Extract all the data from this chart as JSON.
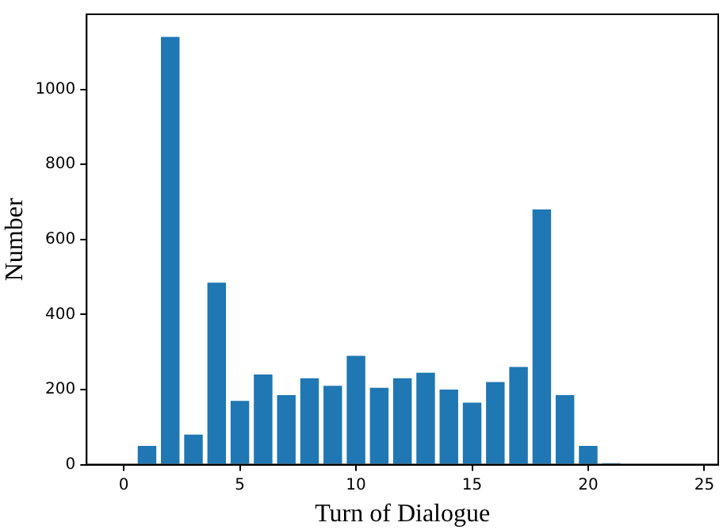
{
  "chart_data": {
    "type": "bar",
    "xlabel": "Turn of Dialogue",
    "ylabel": "Number",
    "x": [
      1,
      2,
      3,
      4,
      5,
      6,
      7,
      8,
      9,
      10,
      11,
      12,
      13,
      14,
      15,
      16,
      17,
      18,
      19,
      20,
      21
    ],
    "values": [
      50,
      1140,
      80,
      485,
      170,
      240,
      185,
      230,
      210,
      290,
      205,
      230,
      245,
      200,
      165,
      220,
      260,
      680,
      185,
      50,
      4
    ],
    "color": "#1f77b4",
    "xlim": [
      -1.6,
      25.6
    ],
    "xticks": [
      0,
      5,
      10,
      15,
      20,
      25
    ],
    "ylim": [
      0,
      1200
    ],
    "yticks": [
      0,
      200,
      400,
      600,
      800,
      1000
    ],
    "grid": false,
    "legend": false
  }
}
